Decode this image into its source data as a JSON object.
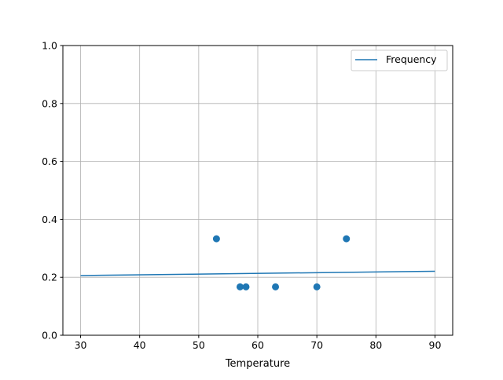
{
  "chart_data": {
    "type": "scatter",
    "title": "",
    "xlabel": "Temperature",
    "ylabel": "",
    "xlim": [
      27,
      93
    ],
    "ylim": [
      0,
      1
    ],
    "xticks": [
      30,
      40,
      50,
      60,
      70,
      80,
      90
    ],
    "xtick_labels": [
      "30",
      "40",
      "50",
      "60",
      "70",
      "80",
      "90"
    ],
    "yticks": [
      0,
      0.2,
      0.4,
      0.6,
      0.8,
      1.0
    ],
    "ytick_labels": [
      "0.0",
      "0.2",
      "0.4",
      "0.6",
      "0.8",
      "1.0"
    ],
    "grid": true,
    "legend": {
      "placement": "top-right",
      "entries": [
        "Frequency"
      ]
    },
    "color": "#1f77b4",
    "scatter_points": {
      "x": [
        53,
        57,
        58,
        63,
        70,
        75
      ],
      "y": [
        0.333,
        0.167,
        0.167,
        0.167,
        0.167,
        0.333
      ]
    },
    "series": [
      {
        "name": "Frequency",
        "type": "line",
        "x": [
          30,
          90
        ],
        "y": [
          0.206,
          0.221
        ]
      }
    ]
  }
}
